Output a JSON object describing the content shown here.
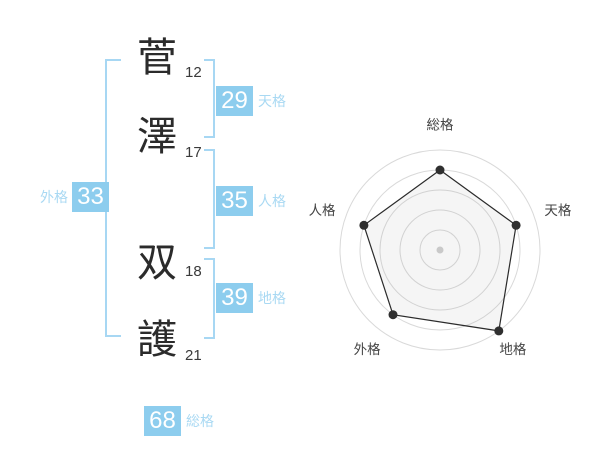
{
  "name_diagram": {
    "characters": [
      {
        "glyph": "菅",
        "strokes": "12"
      },
      {
        "glyph": "澤",
        "strokes": "17"
      },
      {
        "glyph": "双",
        "strokes": "18"
      },
      {
        "glyph": "護",
        "strokes": "21"
      }
    ],
    "scores": {
      "tenkaku": {
        "label": "天格",
        "value": "29"
      },
      "jinkaku": {
        "label": "人格",
        "value": "35"
      },
      "chikaku": {
        "label": "地格",
        "value": "39"
      },
      "gaikaku": {
        "label": "外格",
        "value": "33"
      },
      "soukaku": {
        "label": "総格",
        "value": "68"
      }
    }
  },
  "colors": {
    "accent_blue": "#8dcdee",
    "bracket_blue": "#a7d7f3",
    "label_blue": "#a9d9f3",
    "ring_gray": "#d9d9d9",
    "polygon_stroke": "#2b2b2b",
    "polygon_fill": "rgba(130,130,130,0.08)",
    "dot_color": "#2f2f2f",
    "center_dot": "#c9c9c9",
    "axis_label": "#444444",
    "text_dark": "#2b2b2b"
  },
  "chart_data": {
    "type": "radar",
    "categories": [
      "総格",
      "天格",
      "地格",
      "外格",
      "人格"
    ],
    "values": [
      80,
      80,
      100,
      80,
      80
    ],
    "max": 100,
    "rings": [
      20,
      40,
      60,
      80,
      100
    ],
    "title": "",
    "legend": "none",
    "grid": "circular-pentagon-5-axes",
    "start_angle_deg": -90,
    "direction": "clockwise"
  }
}
